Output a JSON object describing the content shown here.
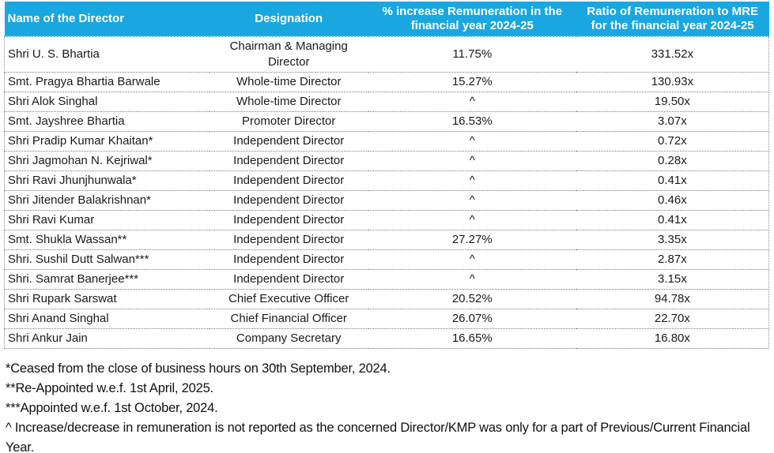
{
  "table": {
    "headers": [
      "Name of the Director",
      "Designation",
      "% increase Remuneration in the financial year 2024-25",
      "Ratio of Remuneration to MRE for the financial year 2024-25"
    ],
    "rows": [
      {
        "name": "Shri U. S. Bhartia",
        "designation": "Chairman & Managing Director",
        "pct_increase": "11.75%",
        "ratio": "331.52x"
      },
      {
        "name": "Smt. Pragya Bhartia Barwale",
        "designation": "Whole-time Director",
        "pct_increase": "15.27%",
        "ratio": "130.93x"
      },
      {
        "name": "Shri Alok Singhal",
        "designation": "Whole-time Director",
        "pct_increase": "^",
        "ratio": "19.50x"
      },
      {
        "name": "Smt. Jayshree Bhartia",
        "designation": "Promoter Director",
        "pct_increase": "16.53%",
        "ratio": "3.07x"
      },
      {
        "name": "Shri Pradip Kumar Khaitan*",
        "designation": "Independent Director",
        "pct_increase": "^",
        "ratio": "0.72x"
      },
      {
        "name": "Shri Jagmohan N. Kejriwal*",
        "designation": "Independent Director",
        "pct_increase": "^",
        "ratio": "0.28x"
      },
      {
        "name": "Shri Ravi Jhunjhunwala*",
        "designation": "Independent Director",
        "pct_increase": "^",
        "ratio": "0.41x"
      },
      {
        "name": "Shri Jitender Balakrishnan*",
        "designation": "Independent Director",
        "pct_increase": "^",
        "ratio": "0.46x"
      },
      {
        "name": "Shri Ravi Kumar",
        "designation": "Independent Director",
        "pct_increase": "^",
        "ratio": "0.41x"
      },
      {
        "name": "Smt. Shukla Wassan**",
        "designation": "Independent Director",
        "pct_increase": "27.27%",
        "ratio": "3.35x"
      },
      {
        "name": "Shri. Sushil Dutt Salwan***",
        "designation": "Independent Director",
        "pct_increase": "^",
        "ratio": "2.87x"
      },
      {
        "name": "Shri. Samrat Banerjee***",
        "designation": "Independent Director",
        "pct_increase": "^",
        "ratio": "3.15x"
      },
      {
        "name": "Shri Rupark Sarswat",
        "designation": "Chief Executive Officer",
        "pct_increase": "20.52%",
        "ratio": "94.78x"
      },
      {
        "name": "Shri Anand Singhal",
        "designation": "Chief Financial Officer",
        "pct_increase": "26.07%",
        "ratio": "22.70x"
      },
      {
        "name": "Shri Ankur Jain",
        "designation": "Company Secretary",
        "pct_increase": "16.65%",
        "ratio": "16.80x"
      }
    ]
  },
  "footnotes": [
    "*Ceased from the close of business hours on 30th September, 2024.",
    "**Re-Appointed w.e.f. 1st April, 2025.",
    "***Appointed w.e.f. 1st October, 2024.",
    "^ Increase/decrease in remuneration is not reported as the concerned Director/KMP was only for a part of Previous/Current Financial Year."
  ],
  "colors": {
    "header_bg": "#1AA7E0",
    "header_text": "#FFFFFF",
    "row_divider": "#7A7A7A",
    "body_text": "#1A1A1A"
  }
}
